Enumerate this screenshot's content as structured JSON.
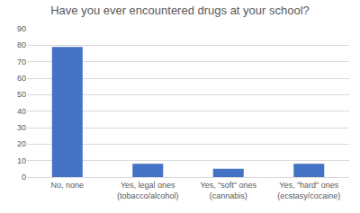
{
  "chart_data": {
    "type": "bar",
    "title": "Have you ever encountered drugs at your school?",
    "categories": [
      "No, none",
      "Yes, legal ones (tobacco/alcohol)",
      "Yes, \"soft\" ones (cannabis)",
      "Yes, \"hard\" ones (ecstasy/cocaine)"
    ],
    "values": [
      79,
      8,
      5,
      8
    ],
    "color": "#4472c4",
    "ylim": [
      0,
      90
    ],
    "yticks": [
      0,
      10,
      20,
      30,
      40,
      50,
      60,
      70,
      80,
      90
    ],
    "grid": true
  }
}
